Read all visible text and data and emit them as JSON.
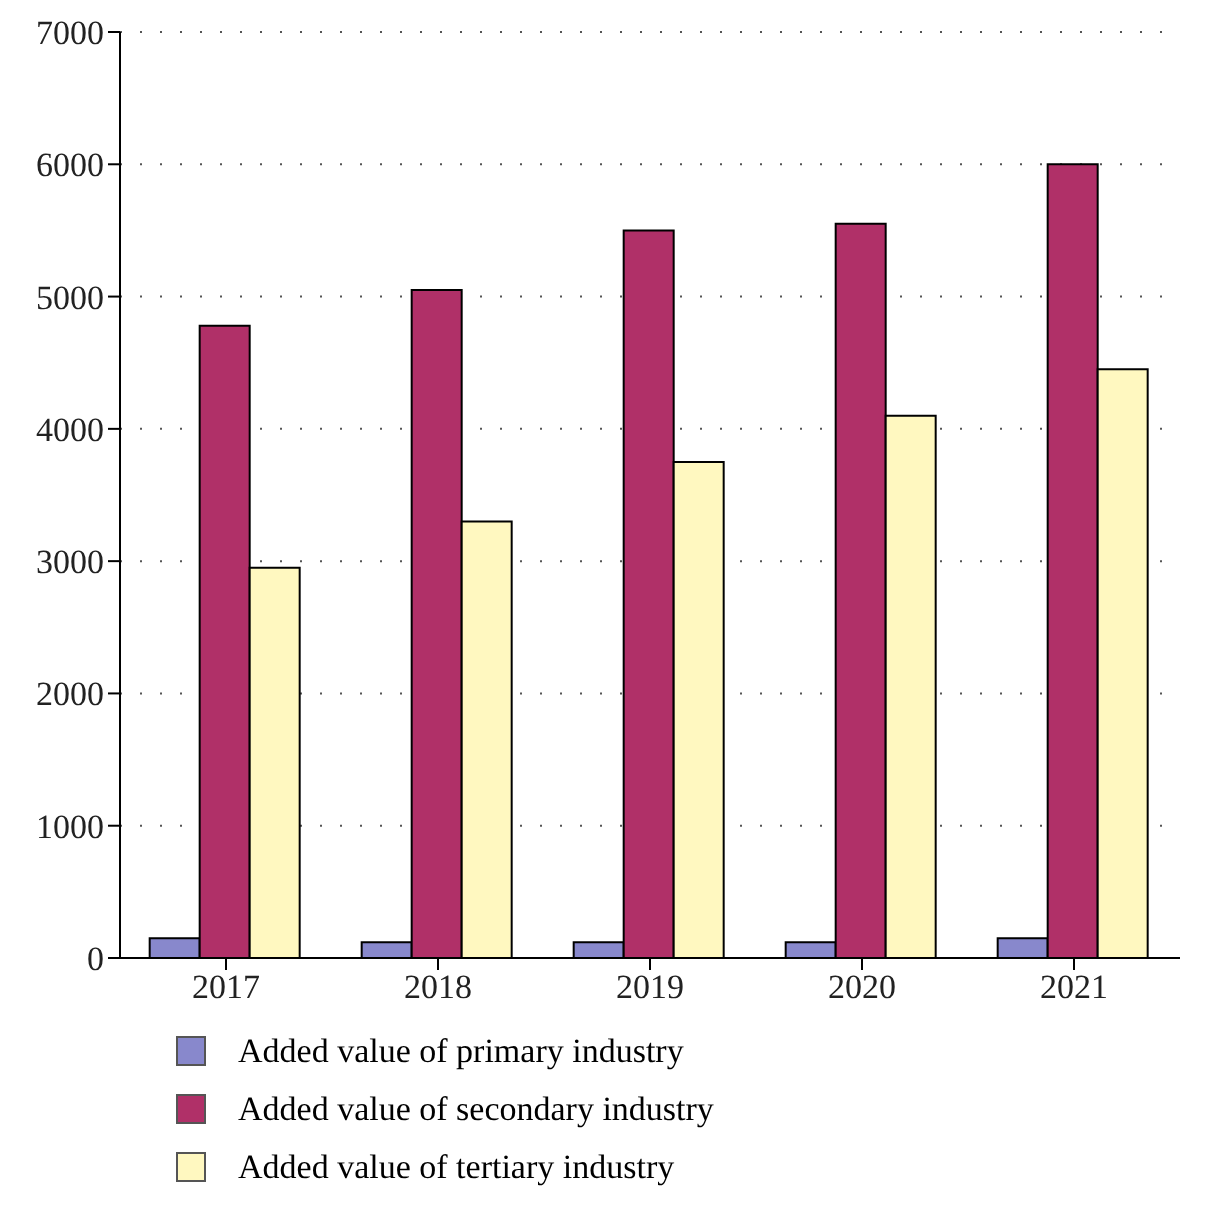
{
  "chart_data": {
    "type": "bar",
    "categories": [
      "2017",
      "2018",
      "2019",
      "2020",
      "2021"
    ],
    "series": [
      {
        "name": "Added value of primary industry",
        "color": "#8888cc",
        "values": [
          150,
          120,
          120,
          120,
          150
        ]
      },
      {
        "name": "Added value of secondary industry",
        "color": "#b03068",
        "values": [
          4780,
          5050,
          5500,
          5550,
          6000
        ]
      },
      {
        "name": "Added value of tertiary industry",
        "color": "#fff8c0",
        "values": [
          2950,
          3300,
          3750,
          4100,
          4450
        ]
      }
    ],
    "ylim": [
      0,
      7000
    ],
    "yticks": [
      0,
      1000,
      2000,
      3000,
      4000,
      5000,
      6000,
      7000
    ],
    "grid": "y",
    "legend": "bottom"
  }
}
